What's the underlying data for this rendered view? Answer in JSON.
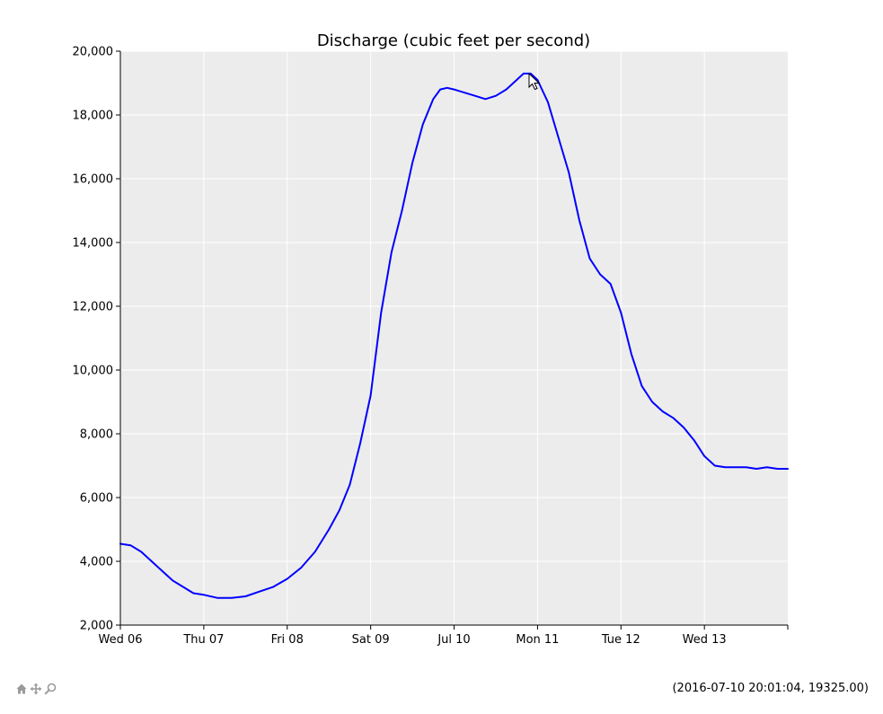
{
  "chart_data": {
    "type": "line",
    "title": "Discharge (cubic feet per second)",
    "xlabel": "",
    "ylabel": "",
    "x_range": [
      "2016-07-06 00:00",
      "2016-07-13 23:59"
    ],
    "ylim": [
      2000,
      20000
    ],
    "y_ticks": [
      2000,
      4000,
      6000,
      8000,
      10000,
      12000,
      14000,
      16000,
      18000,
      20000
    ],
    "y_tick_labels": [
      "2,000",
      "4,000",
      "6,000",
      "8,000",
      "10,000",
      "12,000",
      "14,000",
      "16,000",
      "18,000",
      "20,000"
    ],
    "x_ticks": [
      "2016-07-06 00:00",
      "2016-07-07 00:00",
      "2016-07-08 00:00",
      "2016-07-09 00:00",
      "2016-07-10 00:00",
      "2016-07-11 00:00",
      "2016-07-12 00:00",
      "2016-07-13 00:00"
    ],
    "x_tick_labels": [
      "Wed 06",
      "Thu 07",
      "Fri 08",
      "Sat 09",
      "Jul 10",
      "Mon 11",
      "Tue 12",
      "Wed 13"
    ],
    "grid": true,
    "background": "#ececec",
    "series": [
      {
        "color": "#0000ff",
        "x": [
          "2016-07-06 00:00",
          "2016-07-06 03:00",
          "2016-07-06 06:00",
          "2016-07-06 09:00",
          "2016-07-06 12:00",
          "2016-07-06 15:00",
          "2016-07-06 18:00",
          "2016-07-06 21:00",
          "2016-07-07 00:00",
          "2016-07-07 04:00",
          "2016-07-07 08:00",
          "2016-07-07 12:00",
          "2016-07-07 16:00",
          "2016-07-07 20:00",
          "2016-07-08 00:00",
          "2016-07-08 04:00",
          "2016-07-08 08:00",
          "2016-07-08 12:00",
          "2016-07-08 15:00",
          "2016-07-08 18:00",
          "2016-07-08 21:00",
          "2016-07-09 00:00",
          "2016-07-09 03:00",
          "2016-07-09 06:00",
          "2016-07-09 09:00",
          "2016-07-09 12:00",
          "2016-07-09 15:00",
          "2016-07-09 18:00",
          "2016-07-09 20:00",
          "2016-07-09 22:00",
          "2016-07-10 00:00",
          "2016-07-10 06:00",
          "2016-07-10 09:00",
          "2016-07-10 12:00",
          "2016-07-10 15:00",
          "2016-07-10 18:00",
          "2016-07-10 20:00",
          "2016-07-10 22:00",
          "2016-07-11 00:00",
          "2016-07-11 03:00",
          "2016-07-11 06:00",
          "2016-07-11 09:00",
          "2016-07-11 12:00",
          "2016-07-11 15:00",
          "2016-07-11 18:00",
          "2016-07-11 21:00",
          "2016-07-12 00:00",
          "2016-07-12 03:00",
          "2016-07-12 06:00",
          "2016-07-12 09:00",
          "2016-07-12 12:00",
          "2016-07-12 15:00",
          "2016-07-12 18:00",
          "2016-07-12 21:00",
          "2016-07-13 00:00",
          "2016-07-13 03:00",
          "2016-07-13 06:00",
          "2016-07-13 09:00",
          "2016-07-13 12:00",
          "2016-07-13 15:00",
          "2016-07-13 18:00",
          "2016-07-13 21:00",
          "2016-07-13 23:59"
        ],
        "y": [
          4550,
          4500,
          4300,
          4000,
          3700,
          3400,
          3200,
          3000,
          2950,
          2850,
          2850,
          2900,
          3050,
          3200,
          3450,
          3800,
          4300,
          5000,
          5600,
          6400,
          7700,
          9200,
          11800,
          13700,
          15000,
          16500,
          17700,
          18500,
          18800,
          18850,
          18800,
          18600,
          18500,
          18600,
          18800,
          19100,
          19300,
          19300,
          19100,
          18400,
          17300,
          16200,
          14700,
          13500,
          13000,
          12700,
          11800,
          10500,
          9500,
          9000,
          8700,
          8500,
          8200,
          7800,
          7300,
          7000,
          6950,
          6950,
          6950,
          6900,
          6950,
          6900,
          6900
        ]
      }
    ]
  },
  "toolbar": {
    "icons": [
      "home-icon",
      "pan-icon",
      "zoom-icon"
    ]
  },
  "readout": "(2016-07-10 20:01:04, 19325.00)"
}
